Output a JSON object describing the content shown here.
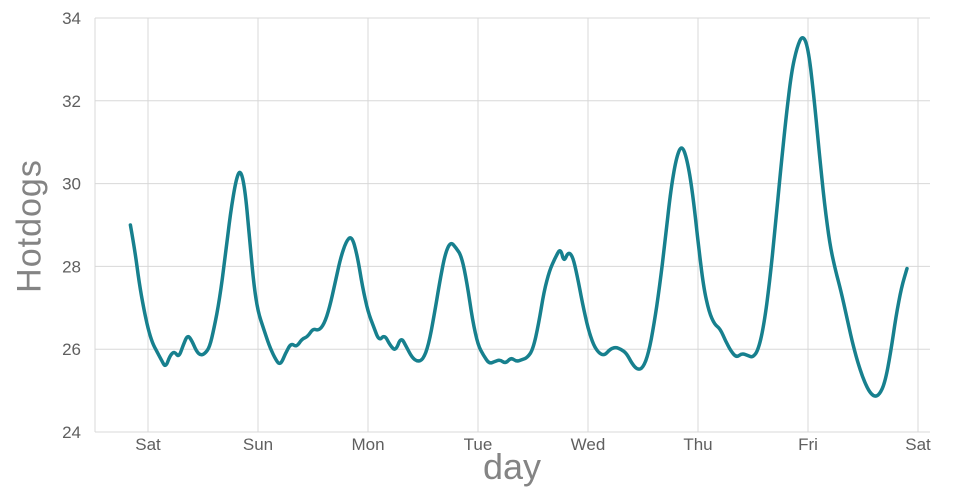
{
  "figure": {
    "ylabel": "Hotdogs",
    "xlabel": "day",
    "background": "#ffffff",
    "line_color": "#17808e",
    "grid_color": "#d8d8d8",
    "label_color": "#848484",
    "tick_color": "#5f5f5f"
  },
  "chart_data": {
    "type": "line",
    "title": "",
    "xlabel": "day",
    "ylabel": "Hotdogs",
    "grid": true,
    "legend": false,
    "xlim": [
      -0.482,
      7.109
    ],
    "ylim": [
      24,
      34
    ],
    "y_ticks": [
      24,
      26,
      28,
      30,
      32,
      34
    ],
    "x_tick_positions": [
      0,
      1,
      2,
      3,
      4,
      5,
      6,
      7
    ],
    "x_tick_labels": [
      "Sat",
      "Sun",
      "Mon",
      "Tue",
      "Wed",
      "Thu",
      "Fri",
      "Sat"
    ],
    "series": [
      {
        "name": "hotdogs",
        "x": [
          -0.16,
          -0.12,
          -0.08,
          -0.04,
          0,
          0.04,
          0.08,
          0.12,
          0.16,
          0.2,
          0.24,
          0.28,
          0.32,
          0.36,
          0.4,
          0.44,
          0.48,
          0.52,
          0.56,
          0.6,
          0.65,
          0.7,
          0.75,
          0.8,
          0.84,
          0.88,
          0.92,
          0.96,
          1,
          1.05,
          1.1,
          1.15,
          1.2,
          1.25,
          1.3,
          1.35,
          1.4,
          1.45,
          1.5,
          1.55,
          1.6,
          1.65,
          1.7,
          1.75,
          1.8,
          1.85,
          1.9,
          1.95,
          2,
          2.05,
          2.1,
          2.15,
          2.2,
          2.25,
          2.3,
          2.35,
          2.4,
          2.45,
          2.5,
          2.55,
          2.6,
          2.65,
          2.7,
          2.75,
          2.8,
          2.85,
          2.9,
          2.95,
          3,
          3.05,
          3.1,
          3.15,
          3.2,
          3.25,
          3.3,
          3.35,
          3.4,
          3.45,
          3.5,
          3.55,
          3.6,
          3.65,
          3.7,
          3.75,
          3.78,
          3.82,
          3.86,
          3.9,
          3.95,
          4,
          4.05,
          4.1,
          4.15,
          4.2,
          4.25,
          4.3,
          4.35,
          4.4,
          4.45,
          4.5,
          4.55,
          4.6,
          4.65,
          4.7,
          4.75,
          4.8,
          4.85,
          4.9,
          4.95,
          5,
          5.05,
          5.1,
          5.15,
          5.2,
          5.25,
          5.3,
          5.35,
          5.4,
          5.45,
          5.5,
          5.55,
          5.6,
          5.65,
          5.7,
          5.75,
          5.8,
          5.85,
          5.9,
          5.95,
          6,
          6.05,
          6.1,
          6.15,
          6.2,
          6.25,
          6.3,
          6.35,
          6.4,
          6.45,
          6.5,
          6.55,
          6.6,
          6.65,
          6.7,
          6.75,
          6.8,
          6.85,
          6.9
        ],
        "y": [
          29,
          28.4,
          27.6,
          27,
          26.5,
          26.15,
          25.95,
          25.75,
          25.55,
          25.85,
          25.95,
          25.8,
          26.1,
          26.35,
          26.2,
          25.95,
          25.85,
          25.9,
          26.05,
          26.5,
          27.2,
          28.2,
          29.3,
          30.1,
          30.35,
          29.9,
          28.8,
          27.6,
          26.9,
          26.5,
          26.1,
          25.8,
          25.6,
          25.9,
          26.15,
          26.05,
          26.25,
          26.3,
          26.5,
          26.45,
          26.6,
          27,
          27.6,
          28.2,
          28.6,
          28.75,
          28.3,
          27.5,
          26.9,
          26.55,
          26.2,
          26.35,
          26.1,
          25.95,
          26.3,
          26.05,
          25.8,
          25.7,
          25.75,
          26.1,
          26.8,
          27.6,
          28.3,
          28.6,
          28.45,
          28.25,
          27.6,
          26.7,
          26.1,
          25.85,
          25.65,
          25.7,
          25.75,
          25.65,
          25.8,
          25.7,
          25.75,
          25.8,
          26,
          26.6,
          27.4,
          27.9,
          28.2,
          28.45,
          28.1,
          28.35,
          28.25,
          27.8,
          27.1,
          26.5,
          26.1,
          25.9,
          25.85,
          26,
          26.05,
          26,
          25.9,
          25.65,
          25.5,
          25.55,
          25.9,
          26.6,
          27.5,
          28.6,
          29.8,
          30.6,
          30.95,
          30.6,
          29.8,
          28.6,
          27.5,
          26.9,
          26.6,
          26.5,
          26.2,
          25.95,
          25.8,
          25.9,
          25.85,
          25.8,
          26,
          26.6,
          27.6,
          28.9,
          30.3,
          31.6,
          32.7,
          33.3,
          33.6,
          33.3,
          32.2,
          30.8,
          29.5,
          28.5,
          27.9,
          27.4,
          26.8,
          26.2,
          25.7,
          25.3,
          25,
          24.85,
          24.9,
          25.2,
          25.9,
          26.8,
          27.5,
          27.95
        ]
      }
    ]
  }
}
